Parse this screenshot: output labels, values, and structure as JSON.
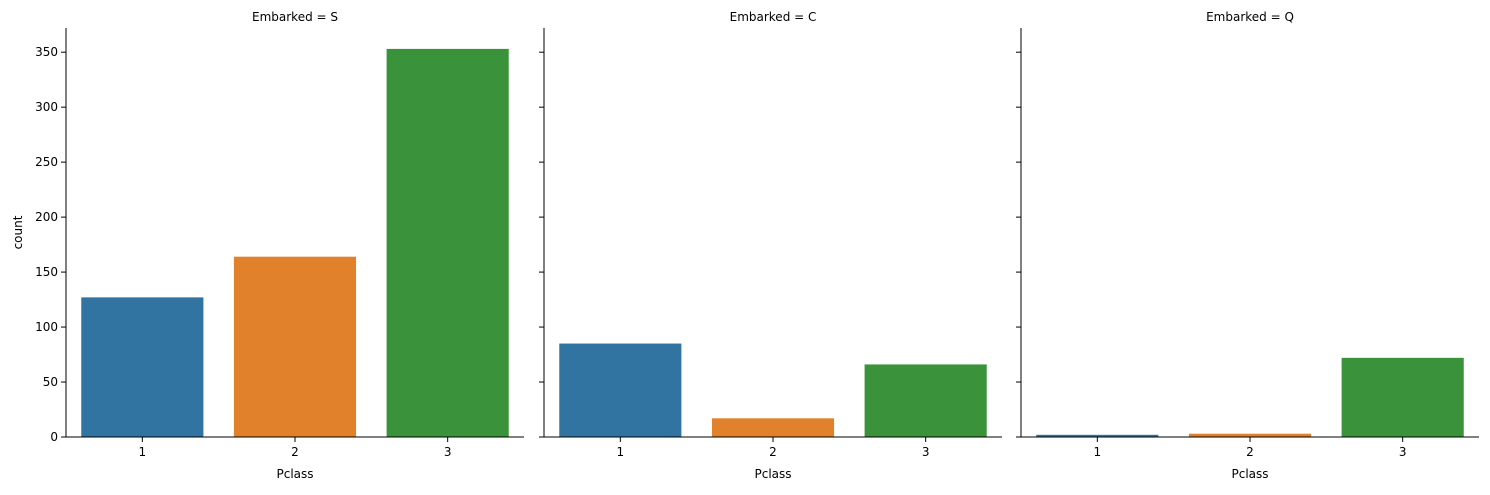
{
  "chart_data": {
    "type": "bar",
    "facet_variable": "Embarked",
    "xlabel": "Pclass",
    "ylabel": "count",
    "categories": [
      "1",
      "2",
      "3"
    ],
    "colors": [
      "#3274a1",
      "#e1812c",
      "#3a923a"
    ],
    "ylim": [
      0,
      372
    ],
    "yticks": [
      0,
      50,
      100,
      150,
      200,
      250,
      300,
      350
    ],
    "ytick_labels": [
      "0",
      "50",
      "100",
      "150",
      "200",
      "250",
      "300",
      "350"
    ],
    "sharey": true,
    "grid": false,
    "legend": "none",
    "panels": [
      {
        "title": "Embarked = S",
        "values": [
          127,
          164,
          353
        ]
      },
      {
        "title": "Embarked = C",
        "values": [
          85,
          17,
          66
        ]
      },
      {
        "title": "Embarked = Q",
        "values": [
          2,
          3,
          72
        ]
      }
    ]
  }
}
